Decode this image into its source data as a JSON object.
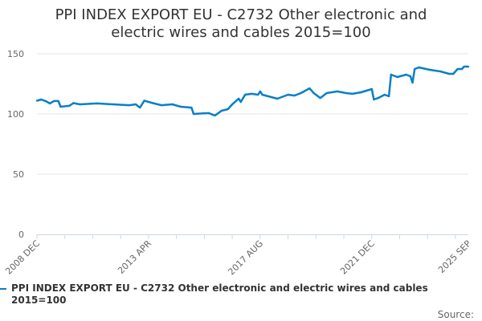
{
  "chart_data": {
    "type": "line",
    "title": "PPI INDEX EXPORT EU - C2732 Other electronic and electric wires and cables 2015=100",
    "title_lines": [
      "PPI INDEX EXPORT EU - C2732 Other electronic and",
      "electric wires and cables 2015=100"
    ],
    "xlabel": "",
    "ylabel": "",
    "ylim": [
      0,
      150
    ],
    "yticks": [
      0,
      50,
      100,
      150
    ],
    "xlim": [
      "2008-12",
      "2025-09"
    ],
    "xticks": [
      {
        "date": "2008-12",
        "label": "2008 DEC"
      },
      {
        "date": "2013-04",
        "label": "2013 APR"
      },
      {
        "date": "2017-08",
        "label": "2017 AUG"
      },
      {
        "date": "2021-12",
        "label": "2021 DEC"
      },
      {
        "date": "2025-09",
        "label": "2025 SEP"
      }
    ],
    "grid": "horizontal",
    "legend_position": "bottom",
    "series": [
      {
        "name": "PPI INDEX EXPORT EU - C2732 Other electronic and electric wires and cables 2015=100",
        "color": "#0a7fc6",
        "points": [
          [
            "2008-12",
            111
          ],
          [
            "2009-02",
            112
          ],
          [
            "2009-04",
            110.7
          ],
          [
            "2009-06",
            108.7
          ],
          [
            "2009-08",
            110.7
          ],
          [
            "2009-10",
            110.7
          ],
          [
            "2009-11",
            106
          ],
          [
            "2010-03",
            106.7
          ],
          [
            "2010-05",
            109
          ],
          [
            "2010-08",
            108
          ],
          [
            "2011-04",
            108.7
          ],
          [
            "2012-07",
            107.3
          ],
          [
            "2012-10",
            108
          ],
          [
            "2012-12",
            105.3
          ],
          [
            "2013-02",
            111
          ],
          [
            "2013-06",
            109
          ],
          [
            "2013-10",
            107.3
          ],
          [
            "2014-03",
            108
          ],
          [
            "2014-07",
            106
          ],
          [
            "2014-12",
            105.3
          ],
          [
            "2015-01",
            100
          ],
          [
            "2015-08",
            100.7
          ],
          [
            "2015-11",
            98.7
          ],
          [
            "2016-02",
            102.7
          ],
          [
            "2016-05",
            104
          ],
          [
            "2016-07",
            108
          ],
          [
            "2016-10",
            112.7
          ],
          [
            "2016-11",
            110
          ],
          [
            "2017-01",
            116
          ],
          [
            "2017-04",
            116.7
          ],
          [
            "2017-07",
            116
          ],
          [
            "2017-08",
            118.7
          ],
          [
            "2017-09",
            116
          ],
          [
            "2018-04",
            112.7
          ],
          [
            "2018-09",
            116
          ],
          [
            "2018-12",
            115.3
          ],
          [
            "2019-03",
            117.3
          ],
          [
            "2019-07",
            121.3
          ],
          [
            "2019-09",
            117.3
          ],
          [
            "2019-12",
            113.3
          ],
          [
            "2020-03",
            117.3
          ],
          [
            "2020-08",
            118.7
          ],
          [
            "2020-12",
            117.3
          ],
          [
            "2021-03",
            116.7
          ],
          [
            "2021-07",
            118
          ],
          [
            "2021-12",
            120.7
          ],
          [
            "2022-01",
            112
          ],
          [
            "2022-03",
            113.3
          ],
          [
            "2022-06",
            116
          ],
          [
            "2022-08",
            114.7
          ],
          [
            "2022-09",
            132.7
          ],
          [
            "2022-12",
            130.7
          ],
          [
            "2023-04",
            132.7
          ],
          [
            "2023-06",
            131.3
          ],
          [
            "2023-07",
            126
          ],
          [
            "2023-08",
            137.3
          ],
          [
            "2023-10",
            138.7
          ],
          [
            "2024-03",
            136.7
          ],
          [
            "2024-08",
            135.3
          ],
          [
            "2024-12",
            133.3
          ],
          [
            "2025-02",
            133.3
          ],
          [
            "2025-04",
            137.3
          ],
          [
            "2025-06",
            137.3
          ],
          [
            "2025-07",
            139.3
          ],
          [
            "2025-09",
            139.3
          ]
        ]
      }
    ]
  },
  "legend": {
    "label": "PPI INDEX EXPORT EU - C2732 Other electronic and electric wires and cables 2015=100"
  },
  "source": {
    "label": "Source:"
  }
}
